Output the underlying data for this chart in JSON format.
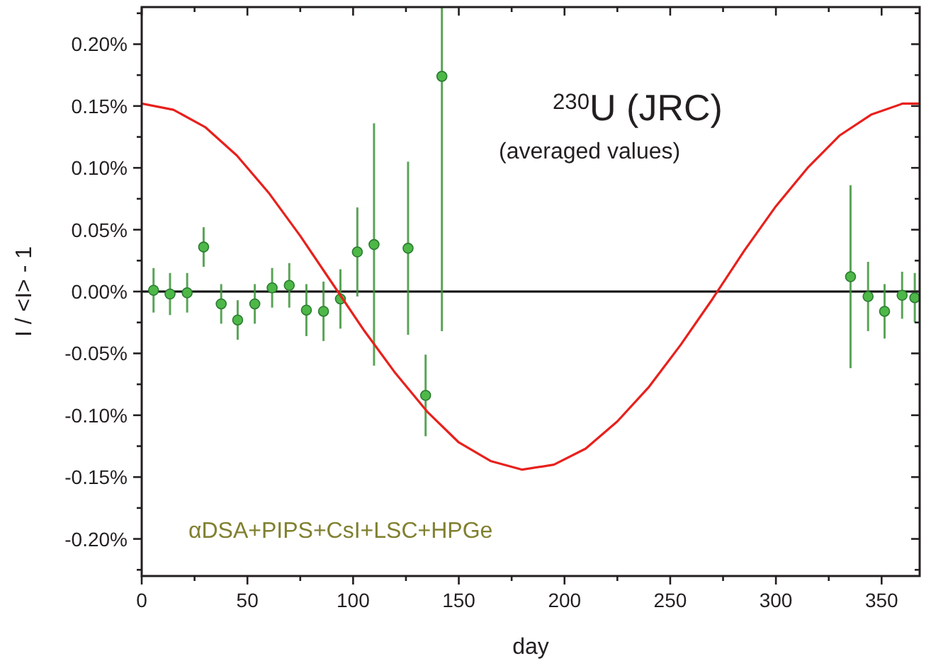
{
  "chart_data": {
    "type": "scatter",
    "xlabel": "day",
    "ylabel": "I / <I> - 1",
    "xlim": [
      0,
      368
    ],
    "ylim": [
      -0.23,
      0.23
    ],
    "xticks": [
      0,
      {
        "value": 25,
        "label": null
      },
      50,
      {
        "value": 75,
        "label": null
      },
      100,
      {
        "value": 125,
        "label": null
      },
      150,
      {
        "value": 175,
        "label": null
      },
      200,
      {
        "value": 225,
        "label": null
      },
      250,
      {
        "value": 275,
        "label": null
      },
      300,
      {
        "value": 325,
        "label": null
      },
      350
    ],
    "yticks": [
      {
        "value": -0.225,
        "label": null
      },
      {
        "value": -0.2,
        "label": "-0.20%"
      },
      {
        "value": -0.175,
        "label": null
      },
      {
        "value": -0.15,
        "label": "-0.15%"
      },
      {
        "value": -0.125,
        "label": null
      },
      {
        "value": -0.1,
        "label": "-0.10%"
      },
      {
        "value": -0.075,
        "label": null
      },
      {
        "value": -0.05,
        "label": "-0.05%"
      },
      {
        "value": -0.025,
        "label": null
      },
      {
        "value": 0,
        "label": "0.00%"
      },
      {
        "value": 0.025,
        "label": null
      },
      {
        "value": 0.05,
        "label": "0.05%"
      },
      {
        "value": 0.075,
        "label": null
      },
      {
        "value": 0.1,
        "label": "0.10%"
      },
      {
        "value": 0.125,
        "label": null
      },
      {
        "value": 0.15,
        "label": "0.15%"
      },
      {
        "value": 0.175,
        "label": null
      },
      {
        "value": 0.2,
        "label": "0.20%"
      },
      {
        "value": 0.225,
        "label": null
      }
    ],
    "grid": false,
    "ref_lines": [
      {
        "axis": "y",
        "value": 0,
        "color": "#000000"
      }
    ],
    "series": [
      {
        "color": "#4db848",
        "marker": "circle",
        "x": [
          5.6,
          13.4,
          21.5,
          29.3,
          37.6,
          45.4,
          53.5,
          61.7,
          69.8,
          77.9,
          86,
          94,
          102,
          109.9,
          126,
          134.3,
          142,
          335.3,
          343.6,
          351.4,
          359.7,
          365.7
        ],
        "values": [
          0.001,
          -0.002,
          -0.001,
          0.036,
          -0.01,
          -0.023,
          -0.01,
          0.003,
          0.005,
          -0.015,
          -0.016,
          -0.006,
          0.032,
          0.038,
          0.035,
          -0.084,
          0.174,
          0.012,
          -0.004,
          -0.016,
          -0.003,
          -0.005
        ],
        "errors": [
          0.018,
          0.017,
          0.016,
          0.016,
          0.016,
          0.016,
          0.016,
          0.016,
          0.018,
          0.021,
          0.024,
          0.024,
          0.036,
          0.098,
          0.07,
          0.033,
          [
            -0.032,
            0.23
          ],
          0.074,
          0.028,
          0.022,
          0.019,
          0.02
        ]
      },
      {
        "type": "line",
        "color": "#e8201c",
        "marker": "none",
        "x": [
          0,
          15,
          30,
          45,
          60,
          75,
          90,
          105,
          120,
          135,
          150,
          165,
          180,
          195,
          210,
          225,
          240,
          255,
          270,
          285,
          300,
          315,
          330,
          345,
          360,
          368
        ],
        "values": [
          0.152,
          0.147,
          0.133,
          0.11,
          0.08,
          0.045,
          0.007,
          -0.031,
          -0.066,
          -0.097,
          -0.122,
          -0.137,
          -0.144,
          -0.14,
          -0.127,
          -0.105,
          -0.077,
          -0.043,
          -0.006,
          0.033,
          0.069,
          0.1,
          0.126,
          0.143,
          0.152,
          0.152
        ]
      }
    ],
    "annotations": [
      "$^{230}$U (JRC)",
      "(averaged values)",
      "αDSA+PIPS+CsI+LSC+HPGe"
    ]
  }
}
